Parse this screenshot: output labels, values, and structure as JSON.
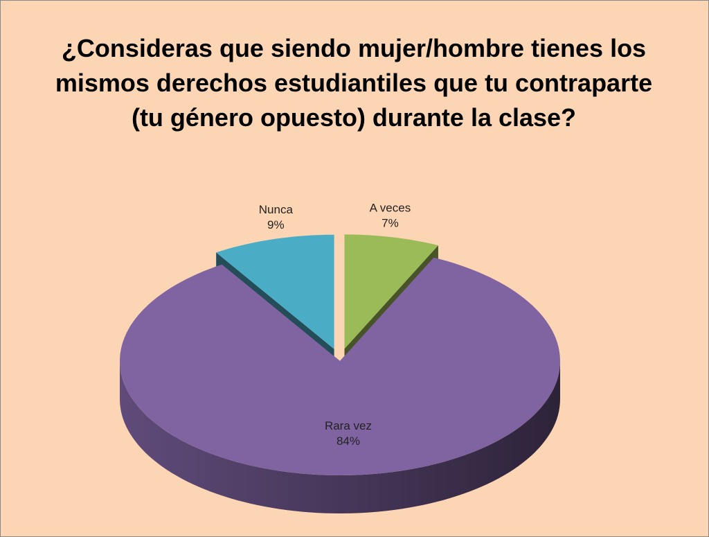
{
  "chart_data": {
    "type": "pie3d",
    "title": "¿Consideras que siendo mujer/hombre tienes los mismos derechos estudiantiles que tu contraparte (tu género opuesto) durante la clase?",
    "categories": [
      "A veces",
      "Rara vez",
      "Nunca"
    ],
    "values": [
      7,
      84,
      9
    ],
    "value_labels": [
      "7%",
      "84%",
      "9%"
    ],
    "colors": [
      "#9bbb59",
      "#8064a2",
      "#4bacc6"
    ],
    "exploded": [
      true,
      false,
      true
    ]
  }
}
